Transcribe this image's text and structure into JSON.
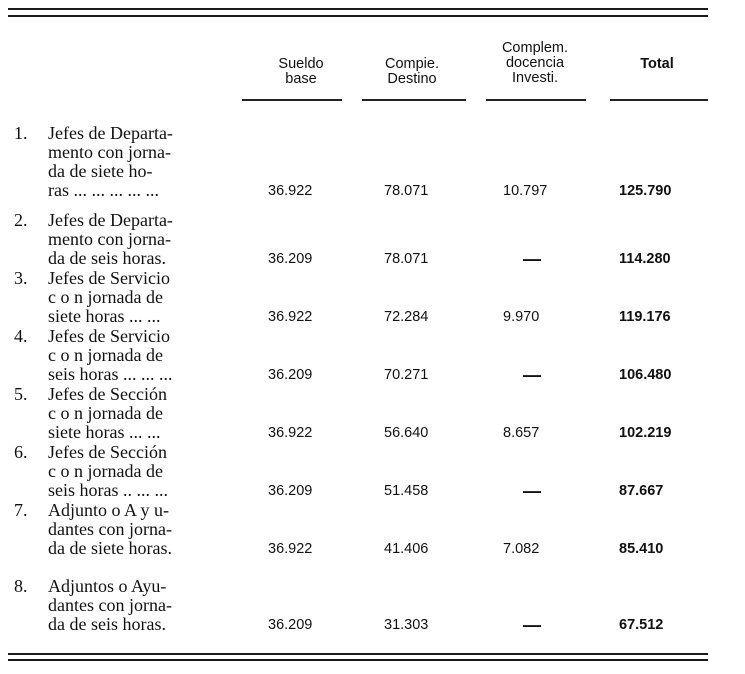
{
  "header": {
    "sueldo_base": "Sueldo\nbase",
    "complemento_destino": "Compie.\nDestino",
    "complemento_docencia": "Complem.\ndocencia\nInvesti.",
    "total": "Total"
  },
  "rows": [
    {
      "num": "1.",
      "lines": [
        "Jefes de Departa-",
        "mento con jorna-",
        "da de siete ho-",
        "ras ... ... ... ... ..."
      ],
      "sueldo_base": "36.922",
      "complemento_destino": "78.071",
      "complemento_docencia": "10.797",
      "total": "125.790"
    },
    {
      "num": "2.",
      "lines": [
        "Jefes de Departa-",
        "mento con jorna-",
        "da de seis horas."
      ],
      "sueldo_base": "36.209",
      "complemento_destino": "78.071",
      "complemento_docencia": "—",
      "total": "114.280"
    },
    {
      "num": "3.",
      "lines": [
        "Jefes de Servicio",
        "c o n jornada de",
        "siete horas ... ..."
      ],
      "sueldo_base": "36.922",
      "complemento_destino": "72.284",
      "complemento_docencia": "9.970",
      "total": "119.176"
    },
    {
      "num": "4.",
      "lines": [
        "Jefes de Servicio",
        "c o n jornada de",
        "seis horas ... ... ..."
      ],
      "sueldo_base": "36.209",
      "complemento_destino": "70.271",
      "complemento_docencia": "—",
      "total": "106.480"
    },
    {
      "num": "5.",
      "lines": [
        "Jefes de Sección",
        "c o n jornada de",
        "siete horas ... ..."
      ],
      "sueldo_base": "36.922",
      "complemento_destino": "56.640",
      "complemento_docencia": "8.657",
      "total": "102.219"
    },
    {
      "num": "6.",
      "lines": [
        "Jefes de Sección",
        "c o n jornada de",
        "seis horas .. ... ..."
      ],
      "sueldo_base": "36.209",
      "complemento_destino": "51.458",
      "complemento_docencia": "—",
      "total": "87.667"
    },
    {
      "num": "7.",
      "lines": [
        "Adjunto o A y u-",
        "dantes con jorna-",
        "da de siete horas."
      ],
      "sueldo_base": "36.922",
      "complemento_destino": "41.406",
      "complemento_docencia": "7.082",
      "total": "85.410"
    },
    {
      "num": "8.",
      "lines": [
        "Adjuntos o Ayu-",
        "dantes con jorna-",
        "da de seis horas."
      ],
      "sueldo_base": "36.209",
      "complemento_destino": "31.303",
      "complemento_docencia": "—",
      "total": "67.512"
    }
  ]
}
